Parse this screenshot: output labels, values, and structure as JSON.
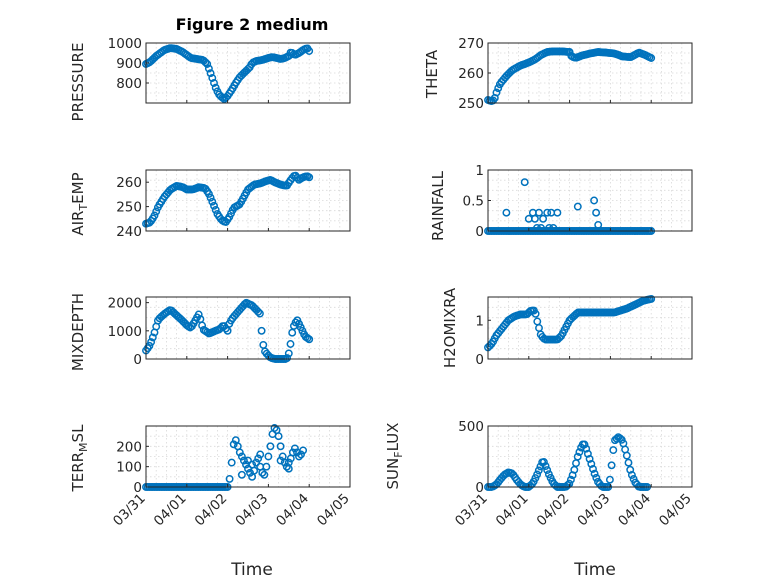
{
  "figure": {
    "title": "Figure 2 medium",
    "background": "#ffffff",
    "marker_color": "#0072bd"
  },
  "chart_data": [
    {
      "type": "scatter",
      "ylabel": "PRESSURE",
      "ylim": [
        700,
        1000
      ],
      "yticks": [
        800,
        900,
        1000
      ],
      "xlim": [
        0,
        5
      ],
      "xticks": [
        0,
        1,
        2,
        3,
        4,
        5
      ],
      "xticklabels": [],
      "grid": true,
      "knots": [
        [
          0,
          895
        ],
        [
          0.1,
          905
        ],
        [
          0.25,
          935
        ],
        [
          0.45,
          965
        ],
        [
          0.6,
          975
        ],
        [
          0.75,
          970
        ],
        [
          0.9,
          955
        ],
        [
          1.0,
          940
        ],
        [
          1.1,
          925
        ],
        [
          1.25,
          920
        ],
        [
          1.4,
          915
        ],
        [
          1.5,
          895
        ],
        [
          1.6,
          840
        ],
        [
          1.7,
          780
        ],
        [
          1.78,
          745
        ],
        [
          1.85,
          730
        ],
        [
          1.92,
          720
        ],
        [
          2.0,
          735
        ],
        [
          2.1,
          765
        ],
        [
          2.2,
          800
        ],
        [
          2.3,
          830
        ],
        [
          2.45,
          860
        ],
        [
          2.55,
          880
        ],
        [
          2.6,
          900
        ],
        [
          2.7,
          910
        ],
        [
          2.85,
          915
        ],
        [
          3.0,
          925
        ],
        [
          3.1,
          930
        ],
        [
          3.2,
          925
        ],
        [
          3.3,
          920
        ],
        [
          3.4,
          925
        ],
        [
          3.5,
          935
        ],
        [
          3.55,
          955
        ],
        [
          3.65,
          940
        ],
        [
          3.75,
          950
        ],
        [
          3.85,
          965
        ],
        [
          3.95,
          975
        ],
        [
          4.0,
          960
        ]
      ]
    },
    {
      "type": "scatter",
      "ylabel": "THETA",
      "ylim": [
        250,
        270
      ],
      "yticks": [
        250,
        260,
        270
      ],
      "xlim": [
        0,
        5
      ],
      "xticks": [
        0,
        1,
        2,
        3,
        4,
        5
      ],
      "xticklabels": [],
      "grid": true,
      "knots": [
        [
          0,
          251
        ],
        [
          0.08,
          250.6
        ],
        [
          0.15,
          251
        ],
        [
          0.22,
          254
        ],
        [
          0.3,
          256.5
        ],
        [
          0.45,
          259
        ],
        [
          0.6,
          261
        ],
        [
          0.8,
          262.5
        ],
        [
          1.0,
          263.5
        ],
        [
          1.15,
          264.5
        ],
        [
          1.3,
          266
        ],
        [
          1.45,
          267
        ],
        [
          1.6,
          267.2
        ],
        [
          1.8,
          267.2
        ],
        [
          2.0,
          267
        ],
        [
          2.05,
          265.5
        ],
        [
          2.15,
          265
        ],
        [
          2.3,
          265.8
        ],
        [
          2.5,
          266.5
        ],
        [
          2.7,
          267
        ],
        [
          2.9,
          266.8
        ],
        [
          3.1,
          266.5
        ],
        [
          3.3,
          265.5
        ],
        [
          3.5,
          265.3
        ],
        [
          3.7,
          266.8
        ],
        [
          3.85,
          266
        ],
        [
          4.0,
          265
        ]
      ]
    },
    {
      "type": "scatter",
      "ylabel": "AIR_TEMP",
      "ylim": [
        240,
        265
      ],
      "yticks": [
        240,
        250,
        260
      ],
      "xlim": [
        0,
        5
      ],
      "xticks": [
        0,
        1,
        2,
        3,
        4,
        5
      ],
      "xticklabels": [],
      "grid": true,
      "knots": [
        [
          0,
          243
        ],
        [
          0.1,
          243.5
        ],
        [
          0.2,
          246
        ],
        [
          0.3,
          250
        ],
        [
          0.45,
          254
        ],
        [
          0.6,
          257
        ],
        [
          0.75,
          258.5
        ],
        [
          0.9,
          258
        ],
        [
          1.0,
          257
        ],
        [
          1.15,
          257
        ],
        [
          1.3,
          258
        ],
        [
          1.45,
          257.5
        ],
        [
          1.55,
          255
        ],
        [
          1.65,
          251
        ],
        [
          1.75,
          247
        ],
        [
          1.85,
          244.5
        ],
        [
          1.95,
          243.5
        ],
        [
          2.05,
          246
        ],
        [
          2.15,
          249.5
        ],
        [
          2.3,
          251
        ],
        [
          2.4,
          254
        ],
        [
          2.5,
          257
        ],
        [
          2.65,
          259
        ],
        [
          2.8,
          259.5
        ],
        [
          2.95,
          260.5
        ],
        [
          3.05,
          261
        ],
        [
          3.15,
          260
        ],
        [
          3.3,
          259
        ],
        [
          3.45,
          258.5
        ],
        [
          3.55,
          261
        ],
        [
          3.65,
          263
        ],
        [
          3.75,
          261
        ],
        [
          3.85,
          262
        ],
        [
          3.95,
          262.5
        ],
        [
          4.0,
          262
        ]
      ]
    },
    {
      "type": "scatter",
      "ylabel": "RAINFALL",
      "ylim": [
        0,
        1
      ],
      "yticks": [
        0,
        0.5,
        1
      ],
      "xlim": [
        0,
        5
      ],
      "xticks": [
        0,
        1,
        2,
        3,
        4,
        5
      ],
      "xticklabels": [],
      "grid": true,
      "baseline_x": [
        0,
        4
      ],
      "baseline_y": 0,
      "points": [
        [
          0.45,
          0.3
        ],
        [
          0.9,
          0.8
        ],
        [
          1.0,
          0.2
        ],
        [
          1.1,
          0.3
        ],
        [
          1.15,
          0.2
        ],
        [
          1.25,
          0.3
        ],
        [
          1.35,
          0.2
        ],
        [
          1.45,
          0.3
        ],
        [
          1.55,
          0.3
        ],
        [
          1.7,
          0.3
        ],
        [
          2.2,
          0.4
        ],
        [
          2.6,
          0.5
        ],
        [
          2.65,
          0.3
        ],
        [
          2.7,
          0.1
        ],
        [
          1.2,
          0.05
        ],
        [
          1.3,
          0.05
        ],
        [
          1.5,
          0.05
        ],
        [
          1.6,
          0.05
        ]
      ]
    },
    {
      "type": "scatter",
      "ylabel": "MIXDEPTH",
      "ylim": [
        0,
        2200
      ],
      "yticks": [
        0,
        1000,
        2000
      ],
      "xlim": [
        0,
        5
      ],
      "xticks": [
        0,
        1,
        2,
        3,
        4,
        5
      ],
      "xticklabels": [],
      "grid": true,
      "knots": [
        [
          0,
          300
        ],
        [
          0.1,
          500
        ],
        [
          0.2,
          900
        ],
        [
          0.3,
          1400
        ],
        [
          0.45,
          1600
        ],
        [
          0.6,
          1750
        ],
        [
          0.75,
          1550
        ],
        [
          0.9,
          1350
        ],
        [
          1.0,
          1200
        ],
        [
          1.1,
          1100
        ],
        [
          1.2,
          1350
        ],
        [
          1.3,
          1600
        ],
        [
          1.4,
          1050
        ],
        [
          1.55,
          900
        ],
        [
          1.7,
          1000
        ],
        [
          1.8,
          1050
        ],
        [
          1.9,
          1200
        ],
        [
          2.0,
          1000
        ],
        [
          2.05,
          1300
        ],
        [
          2.15,
          1500
        ],
        [
          2.3,
          1750
        ],
        [
          2.45,
          2000
        ],
        [
          2.6,
          1900
        ],
        [
          2.7,
          1750
        ],
        [
          2.8,
          1600
        ],
        [
          2.85,
          700
        ],
        [
          2.9,
          300
        ],
        [
          2.95,
          200
        ],
        [
          3.05,
          50
        ],
        [
          3.15,
          0
        ],
        [
          3.25,
          0
        ],
        [
          3.35,
          0
        ],
        [
          3.45,
          0
        ],
        [
          3.5,
          200
        ],
        [
          3.55,
          600
        ],
        [
          3.6,
          1100
        ],
        [
          3.7,
          1400
        ],
        [
          3.8,
          1100
        ],
        [
          3.9,
          800
        ],
        [
          4.0,
          700
        ]
      ]
    },
    {
      "type": "scatter",
      "ylabel": "H2OMIXRA",
      "ylim": [
        0,
        1.6
      ],
      "yticks": [
        0,
        1
      ],
      "xlim": [
        0,
        5
      ],
      "xticks": [
        0,
        1,
        2,
        3,
        4,
        5
      ],
      "xticklabels": [],
      "grid": true,
      "knots": [
        [
          0,
          0.3
        ],
        [
          0.1,
          0.4
        ],
        [
          0.2,
          0.6
        ],
        [
          0.35,
          0.8
        ],
        [
          0.5,
          1.0
        ],
        [
          0.65,
          1.1
        ],
        [
          0.8,
          1.15
        ],
        [
          0.95,
          1.15
        ],
        [
          1.05,
          1.25
        ],
        [
          1.15,
          1.25
        ],
        [
          1.2,
          1.0
        ],
        [
          1.25,
          0.8
        ],
        [
          1.3,
          0.6
        ],
        [
          1.4,
          0.5
        ],
        [
          1.55,
          0.5
        ],
        [
          1.7,
          0.5
        ],
        [
          1.8,
          0.6
        ],
        [
          1.9,
          0.8
        ],
        [
          2.0,
          1.0
        ],
        [
          2.2,
          1.2
        ],
        [
          2.5,
          1.2
        ],
        [
          2.8,
          1.2
        ],
        [
          3.1,
          1.2
        ],
        [
          3.4,
          1.3
        ],
        [
          3.6,
          1.4
        ],
        [
          3.8,
          1.5
        ],
        [
          4.0,
          1.55
        ]
      ]
    },
    {
      "type": "scatter",
      "ylabel": "TERR_MSL",
      "ylim": [
        0,
        300
      ],
      "yticks": [
        0,
        100,
        200
      ],
      "xlim": [
        0,
        5
      ],
      "xticks": [
        0,
        1,
        2,
        3,
        4,
        5
      ],
      "xticklabels": [
        "03/31",
        "04/01",
        "04/02",
        "04/03",
        "04/04",
        "04/05"
      ],
      "grid": true,
      "baseline_x": [
        0,
        2.0
      ],
      "baseline_y": 0,
      "points": [
        [
          2.05,
          40
        ],
        [
          2.1,
          120
        ],
        [
          2.15,
          210
        ],
        [
          2.2,
          230
        ],
        [
          2.25,
          200
        ],
        [
          2.3,
          170
        ],
        [
          2.35,
          150
        ],
        [
          2.4,
          130
        ],
        [
          2.45,
          110
        ],
        [
          2.5,
          90
        ],
        [
          2.55,
          70
        ],
        [
          2.6,
          50
        ],
        [
          2.65,
          80
        ],
        [
          2.7,
          120
        ],
        [
          2.75,
          140
        ],
        [
          2.8,
          100
        ],
        [
          2.85,
          70
        ],
        [
          2.9,
          60
        ],
        [
          2.95,
          100
        ],
        [
          3.0,
          150
        ],
        [
          3.05,
          200
        ],
        [
          3.1,
          260
        ],
        [
          3.15,
          290
        ],
        [
          3.2,
          280
        ],
        [
          3.25,
          250
        ],
        [
          3.3,
          200
        ],
        [
          3.35,
          150
        ],
        [
          3.4,
          120
        ],
        [
          3.45,
          100
        ],
        [
          3.5,
          120
        ],
        [
          3.55,
          140
        ],
        [
          3.6,
          170
        ],
        [
          3.65,
          190
        ],
        [
          3.7,
          170
        ],
        [
          3.75,
          150
        ],
        [
          3.8,
          160
        ],
        [
          3.85,
          180
        ],
        [
          2.35,
          60
        ],
        [
          2.5,
          130
        ],
        [
          2.6,
          110
        ],
        [
          2.8,
          160
        ],
        [
          3.3,
          130
        ],
        [
          3.5,
          90
        ]
      ]
    },
    {
      "type": "scatter",
      "ylabel": "SUN_FLUX",
      "ylim": [
        0,
        500
      ],
      "yticks": [
        0,
        500
      ],
      "xlim": [
        0,
        5
      ],
      "xticks": [
        0,
        1,
        2,
        3,
        4,
        5
      ],
      "xticklabels": [
        "03/31",
        "04/01",
        "04/02",
        "04/03",
        "04/04",
        "04/05"
      ],
      "grid": true,
      "knots": [
        [
          0,
          0
        ],
        [
          0.1,
          0
        ],
        [
          0.2,
          20
        ],
        [
          0.3,
          60
        ],
        [
          0.4,
          100
        ],
        [
          0.5,
          120
        ],
        [
          0.6,
          110
        ],
        [
          0.7,
          60
        ],
        [
          0.8,
          20
        ],
        [
          0.9,
          0
        ],
        [
          1.0,
          0
        ],
        [
          1.1,
          30
        ],
        [
          1.2,
          100
        ],
        [
          1.3,
          180
        ],
        [
          1.35,
          220
        ],
        [
          1.4,
          180
        ],
        [
          1.5,
          100
        ],
        [
          1.6,
          30
        ],
        [
          1.7,
          0
        ],
        [
          1.9,
          0
        ],
        [
          2.0,
          30
        ],
        [
          2.1,
          120
        ],
        [
          2.2,
          250
        ],
        [
          2.3,
          340
        ],
        [
          2.35,
          360
        ],
        [
          2.4,
          320
        ],
        [
          2.5,
          220
        ],
        [
          2.6,
          120
        ],
        [
          2.7,
          40
        ],
        [
          2.8,
          0
        ],
        [
          2.95,
          0
        ],
        [
          3.0,
          80
        ],
        [
          3.05,
          250
        ],
        [
          3.1,
          380
        ],
        [
          3.2,
          410
        ],
        [
          3.3,
          380
        ],
        [
          3.4,
          260
        ],
        [
          3.5,
          120
        ],
        [
          3.6,
          40
        ],
        [
          3.7,
          0
        ],
        [
          3.9,
          0
        ]
      ]
    }
  ],
  "xlabel": "Time",
  "labels": {
    "ylabel_0": "PRESSURE",
    "ylabel_1": "THETA",
    "ylabel_2_a": "AIR",
    "ylabel_2_sub": "T",
    "ylabel_2_b": "EMP",
    "ylabel_3": "RAINFALL",
    "ylabel_4": "MIXDEPTH",
    "ylabel_5": "H2OMIXRA",
    "ylabel_6_a": "TERR",
    "ylabel_6_sub": "M",
    "ylabel_6_b": "SL",
    "ylabel_7_a": "SUN",
    "ylabel_7_sub": "F",
    "ylabel_7_b": "LUX",
    "xlabel_left": "Time",
    "xlabel_right": "Time"
  }
}
